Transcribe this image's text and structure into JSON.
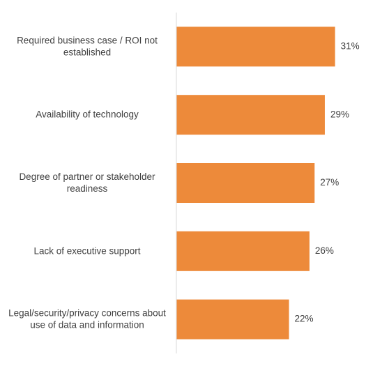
{
  "chart_data": {
    "type": "barh",
    "categories": [
      "Required business case / ROI not established",
      "Availability of technology",
      "Degree of partner or stakeholder readiness",
      "Lack of executive support",
      "Legal/security/privacy concerns about use of data and information"
    ],
    "values": [
      31,
      29,
      27,
      26,
      22
    ],
    "value_labels": [
      "31%",
      "29%",
      "27%",
      "26%",
      "22%"
    ],
    "color": "#ED8A3A",
    "xlim": [
      0,
      35
    ]
  }
}
